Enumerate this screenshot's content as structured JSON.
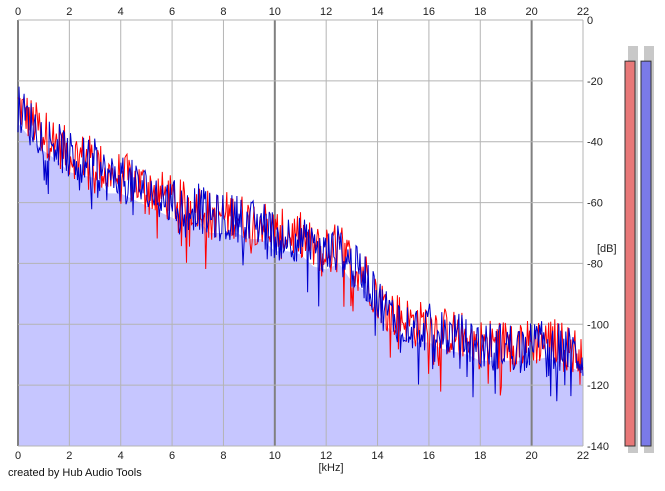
{
  "chart_data": {
    "type": "area",
    "xlabel": "[kHz]",
    "ylabel": "[dB]",
    "xlim": [
      0,
      22
    ],
    "ylim": [
      -140,
      0
    ],
    "x_ticks": [
      "0",
      "2",
      "4",
      "6",
      "8",
      "10",
      "12",
      "14",
      "16",
      "18",
      "20",
      "22"
    ],
    "y_ticks": [
      "0",
      "-20",
      "-40",
      "-60",
      "-80",
      "-100",
      "-120",
      "-140"
    ],
    "grid": true,
    "fill_color": "#c6c6ff",
    "background": "#ffffff",
    "grid_color": "#b4b4b4",
    "series": [
      {
        "color": "#ff0000",
        "x": [
          0,
          0.5,
          1,
          1.5,
          2,
          2.5,
          3,
          3.5,
          4,
          4.5,
          5,
          5.5,
          6,
          6.5,
          7,
          7.5,
          8,
          8.5,
          9,
          9.5,
          10,
          10.5,
          11,
          11.5,
          12,
          12.5,
          13,
          13.5,
          14,
          14.5,
          15,
          15.5,
          16,
          16.5,
          17,
          17.5,
          18,
          18.5,
          19,
          19.5,
          20,
          20.5,
          21,
          21.5,
          22
        ],
        "values": [
          -28,
          -33,
          -37,
          -40,
          -44,
          -45,
          -46,
          -51,
          -51,
          -53,
          -55,
          -57,
          -59,
          -61,
          -60,
          -64,
          -64,
          -64,
          -66,
          -66,
          -70,
          -70,
          -71,
          -75,
          -76,
          -74,
          -80,
          -83,
          -91,
          -96,
          -98,
          -100,
          -100,
          -102,
          -103,
          -104,
          -106,
          -106,
          -106,
          -106,
          -106,
          -105,
          -106,
          -108,
          -110
        ]
      },
      {
        "color": "#0000cc",
        "x": [
          0,
          0.5,
          1,
          1.5,
          2,
          2.5,
          3,
          3.5,
          4,
          4.5,
          5,
          5.5,
          6,
          6.5,
          7,
          7.5,
          8,
          8.5,
          9,
          9.5,
          10,
          10.5,
          11,
          11.5,
          12,
          12.5,
          13,
          13.5,
          14,
          14.5,
          15,
          15.5,
          16,
          16.5,
          17,
          17.5,
          18,
          18.5,
          19,
          19.5,
          20,
          20.5,
          21,
          21.5,
          22
        ],
        "values": [
          -29,
          -34,
          -38,
          -41,
          -45,
          -46,
          -47,
          -52,
          -52,
          -54,
          -56,
          -58,
          -60,
          -62,
          -61,
          -65,
          -65,
          -65,
          -67,
          -67,
          -71,
          -71,
          -72,
          -76,
          -77,
          -75,
          -81,
          -84,
          -92,
          -97,
          -99,
          -101,
          -101,
          -103,
          -104,
          -105,
          -107,
          -107,
          -107,
          -107,
          -107,
          -106,
          -107,
          -109,
          -111
        ]
      }
    ],
    "meters": [
      {
        "color": "#e87878",
        "level": 0.955
      },
      {
        "color": "#7a7ae8",
        "level": 0.955
      }
    ]
  },
  "footer": {
    "credit": "created by Hub Audio Tools"
  }
}
